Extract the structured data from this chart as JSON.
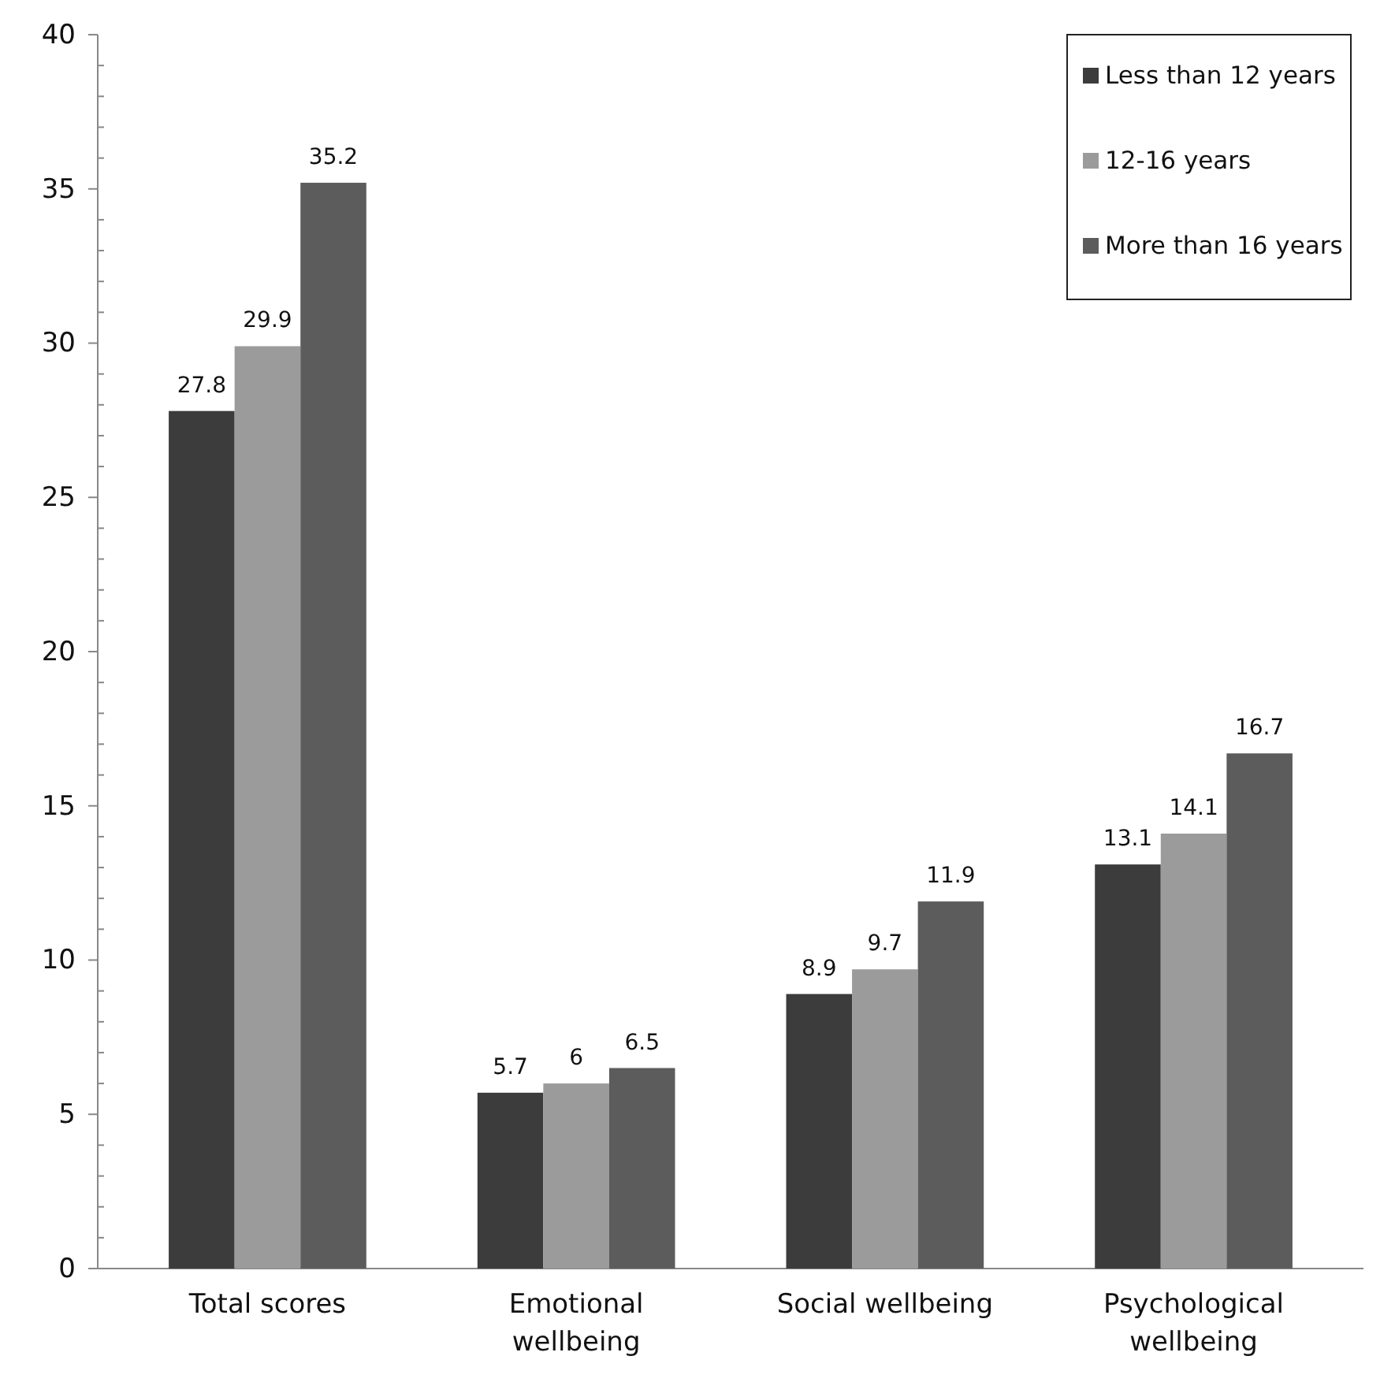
{
  "chart_data": {
    "type": "bar",
    "categories": [
      "Total scores",
      "Emotional wellbeing",
      "Social wellbeing",
      "Psychological wellbeing"
    ],
    "series": [
      {
        "name": "Less than 12 years",
        "color": "#3c3c3c",
        "values": [
          27.8,
          5.7,
          8.9,
          13.1
        ]
      },
      {
        "name": "12-16 years",
        "color": "#9b9b9b",
        "values": [
          29.9,
          6,
          9.7,
          14.1
        ]
      },
      {
        "name": "More than 16 years",
        "color": "#5c5c5c",
        "values": [
          35.2,
          6.5,
          11.9,
          16.7
        ]
      }
    ],
    "ylim": [
      0,
      40
    ],
    "yticks": [
      0,
      {
        "value": 1,
        "label": null
      },
      {
        "value": 2,
        "label": null
      },
      {
        "value": 3,
        "label": null
      },
      {
        "value": 4,
        "label": null
      },
      5,
      {
        "value": 6,
        "label": null
      },
      {
        "value": 7,
        "label": null
      },
      {
        "value": 8,
        "label": null
      },
      {
        "value": 9,
        "label": null
      },
      10,
      {
        "value": 11,
        "label": null
      },
      {
        "value": 12,
        "label": null
      },
      {
        "value": 13,
        "label": null
      },
      {
        "value": 14,
        "label": null
      },
      15,
      {
        "value": 16,
        "label": null
      },
      {
        "value": 17,
        "label": null
      },
      {
        "value": 18,
        "label": null
      },
      {
        "value": 19,
        "label": null
      },
      20,
      {
        "value": 21,
        "label": null
      },
      {
        "value": 22,
        "label": null
      },
      {
        "value": 23,
        "label": null
      },
      {
        "value": 24,
        "label": null
      },
      25,
      {
        "value": 26,
        "label": null
      },
      {
        "value": 27,
        "label": null
      },
      {
        "value": 28,
        "label": null
      },
      {
        "value": 29,
        "label": null
      },
      30,
      {
        "value": 31,
        "label": null
      },
      {
        "value": 32,
        "label": null
      },
      {
        "value": 33,
        "label": null
      },
      {
        "value": 34,
        "label": null
      },
      35,
      {
        "value": 36,
        "label": null
      },
      {
        "value": 37,
        "label": null
      },
      {
        "value": 38,
        "label": null
      },
      {
        "value": 39,
        "label": null
      },
      40
    ],
    "data_labels": true,
    "legend": "top right",
    "grid": false
  }
}
